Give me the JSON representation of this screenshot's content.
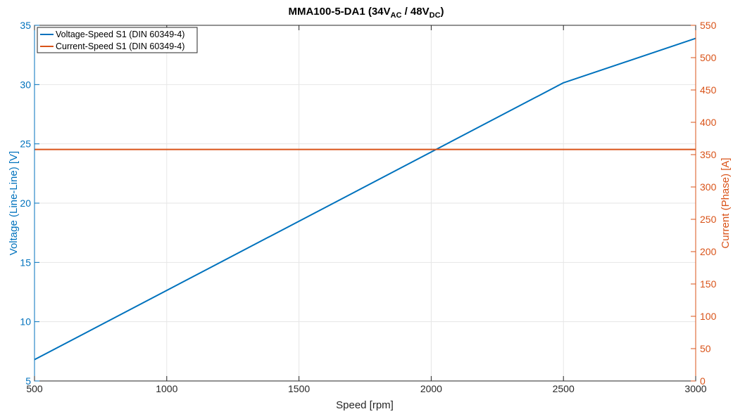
{
  "chart_data": {
    "type": "line",
    "title": {
      "main": "MMA100-5-DA1 (34V",
      "sub1": "AC",
      "mid": " / 48V",
      "sub2": "DC",
      "end": ")"
    },
    "xlabel": "Speed [rpm]",
    "ylabel_left": "Voltage (Line-Line) [V]",
    "ylabel_right": "Current (Phase) [A]",
    "xlim": [
      500,
      3000
    ],
    "ylim_left": [
      5,
      35
    ],
    "ylim_right": [
      0,
      550
    ],
    "xticks": [
      500,
      1000,
      1500,
      2000,
      2500,
      3000
    ],
    "yticks_left": [
      5,
      10,
      15,
      20,
      25,
      30,
      35
    ],
    "yticks_right": [
      0,
      50,
      100,
      150,
      200,
      250,
      300,
      350,
      400,
      450,
      500,
      550
    ],
    "grid": true,
    "legend_location": "top-left",
    "colors": {
      "left_axis": "#0072BD",
      "right_axis": "#D95319",
      "grid": "#e6e6e6",
      "frame": "#262626"
    },
    "series": [
      {
        "name": "Voltage-Speed S1 (DIN 60349-4)",
        "axis": "left",
        "color": "#0072BD",
        "x": [
          500,
          2500,
          3000
        ],
        "y": [
          6.8,
          30.15,
          33.9
        ]
      },
      {
        "name": "Current-Speed S1 (DIN 60349-4)",
        "axis": "right",
        "color": "#D95319",
        "x": [
          500,
          3000
        ],
        "y": [
          358,
          358
        ]
      }
    ]
  }
}
